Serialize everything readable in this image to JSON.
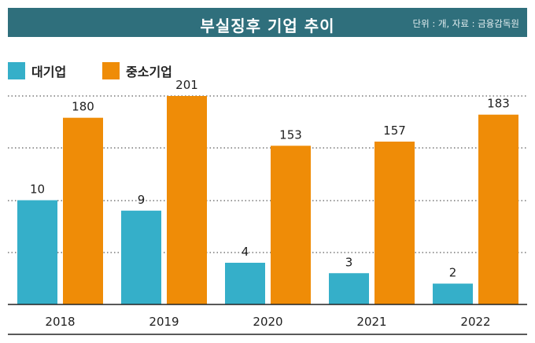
{
  "header": {
    "title": "부실징후 기업 추이",
    "source": "단위 : 개, 자료 : 금융감독원"
  },
  "colors": {
    "large": "#35afc9",
    "sme": "#ef8c07",
    "title_bg": "#2f6f7c",
    "grid": "#333333"
  },
  "chart_data": {
    "type": "bar",
    "categories": [
      "2018",
      "2019",
      "2020",
      "2021",
      "2022"
    ],
    "series": [
      {
        "name": "대기업",
        "values": [
          10,
          9,
          4,
          3,
          2
        ],
        "color": "#35afc9",
        "scale_max": 20
      },
      {
        "name": "중소기업",
        "values": [
          180,
          201,
          153,
          157,
          183
        ],
        "color": "#ef8c07",
        "scale_max": 201
      }
    ],
    "title": "부실징후 기업 추이",
    "legend_position": "top-left",
    "grid": true
  }
}
